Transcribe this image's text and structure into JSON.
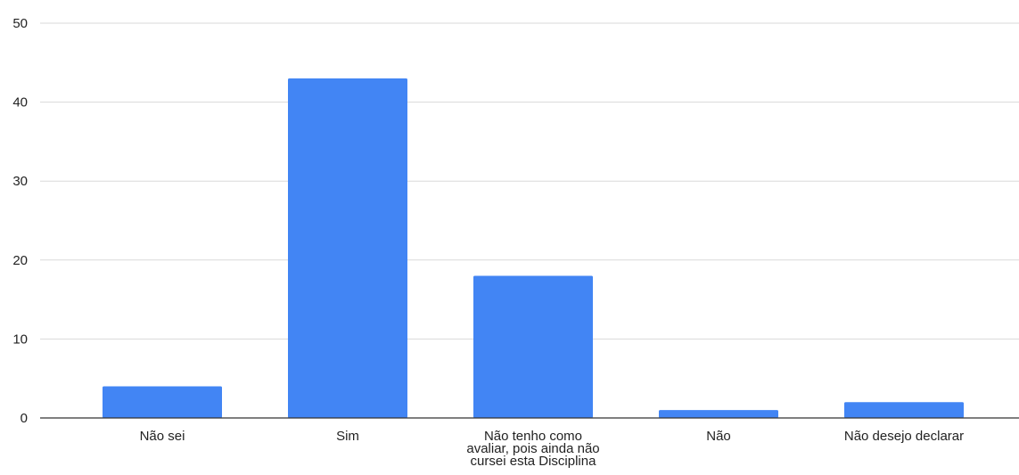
{
  "chart_data": {
    "type": "bar",
    "categories": [
      "Não sei",
      "Sim",
      "Não tenho como avaliar, pois ainda não cursei esta Disciplina",
      "Não",
      "Não desejo declarar"
    ],
    "category_label_lines": [
      [
        "Não sei"
      ],
      [
        "Sim"
      ],
      [
        "Não tenho como",
        "avaliar, pois ainda não",
        "cursei esta Disciplina"
      ],
      [
        "Não"
      ],
      [
        "Não desejo declarar"
      ]
    ],
    "values": [
      4,
      43,
      18,
      1,
      2
    ],
    "ylim": [
      0,
      50
    ],
    "yticks": [
      0,
      10,
      20,
      30,
      40,
      50
    ],
    "grid": true,
    "colors": {
      "bar": "#4285f4",
      "grid": "#d9d9d9",
      "axis": "#333333",
      "text": "#222222"
    }
  }
}
